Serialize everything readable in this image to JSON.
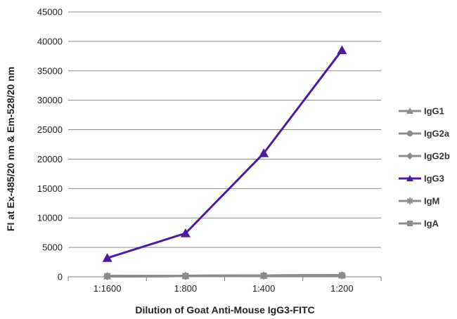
{
  "chart_data": {
    "type": "line",
    "xlabel": "Dilution of Goat Anti-Mouse IgG3-FITC",
    "ylabel": "FI at Ex-485/20 nm & Em-528/20 nm",
    "categories": [
      "1:1600",
      "1:800",
      "1:400",
      "1:200"
    ],
    "ylim": [
      0,
      45000
    ],
    "yticks": [
      0,
      5000,
      10000,
      15000,
      20000,
      25000,
      30000,
      35000,
      40000,
      45000
    ],
    "grid": true,
    "legend_position": "right",
    "series": [
      {
        "name": "IgG1",
        "values": [
          100,
          150,
          200,
          250
        ],
        "color": "#8c8c8c",
        "marker": "triangle"
      },
      {
        "name": "IgG2a",
        "values": [
          100,
          150,
          200,
          250
        ],
        "color": "#8c8c8c",
        "marker": "circle"
      },
      {
        "name": "IgG2b",
        "values": [
          100,
          150,
          200,
          250
        ],
        "color": "#8c8c8c",
        "marker": "diamond"
      },
      {
        "name": "IgG3",
        "values": [
          3200,
          7400,
          21000,
          38500
        ],
        "color": "#4b1aa0",
        "marker": "triangle"
      },
      {
        "name": "IgM",
        "values": [
          100,
          150,
          200,
          250
        ],
        "color": "#8c8c8c",
        "marker": "star"
      },
      {
        "name": "IgA",
        "values": [
          100,
          150,
          200,
          250
        ],
        "color": "#8c8c8c",
        "marker": "square"
      }
    ]
  }
}
